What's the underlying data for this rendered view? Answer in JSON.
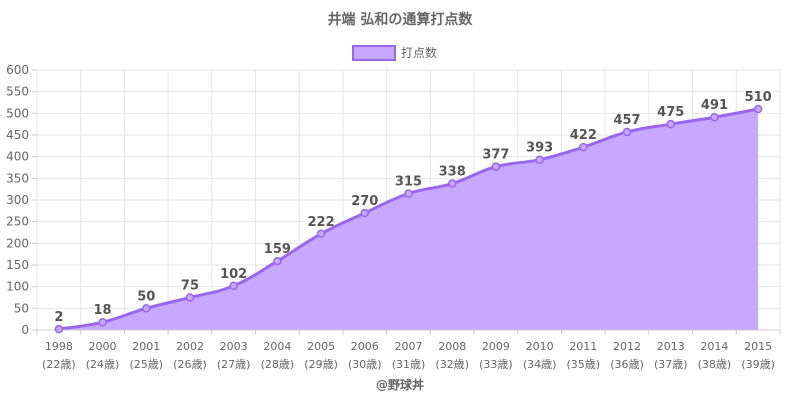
{
  "chart_data": {
    "type": "area",
    "title": "井端 弘和の通算打点数",
    "legend_position": "top-center",
    "grid": true,
    "x": [
      "1998",
      "2000",
      "2001",
      "2002",
      "2003",
      "2004",
      "2005",
      "2006",
      "2007",
      "2008",
      "2009",
      "2010",
      "2011",
      "2012",
      "2013",
      "2014",
      "2015"
    ],
    "x_sublabels": [
      "(22歳)",
      "(24歳)",
      "(25歳)",
      "(26歳)",
      "(27歳)",
      "(28歳)",
      "(29歳)",
      "(30歳)",
      "(31歳)",
      "(32歳)",
      "(33歳)",
      "(34歳)",
      "(35歳)",
      "(36歳)",
      "(37歳)",
      "(38歳)",
      "(39歳)"
    ],
    "series": [
      {
        "name": "打点数",
        "values": [
          2,
          18,
          50,
          75,
          102,
          159,
          222,
          270,
          315,
          338,
          377,
          393,
          422,
          457,
          475,
          491,
          510
        ]
      }
    ],
    "ylim": [
      0,
      600
    ],
    "yticks": [
      0,
      50,
      100,
      150,
      200,
      250,
      300,
      350,
      400,
      450,
      500,
      550,
      600
    ],
    "colors": {
      "line": "#9966ee",
      "fill": "#c6a9ff",
      "grid": "#e6e6e6"
    }
  },
  "credit": "@野球丼"
}
